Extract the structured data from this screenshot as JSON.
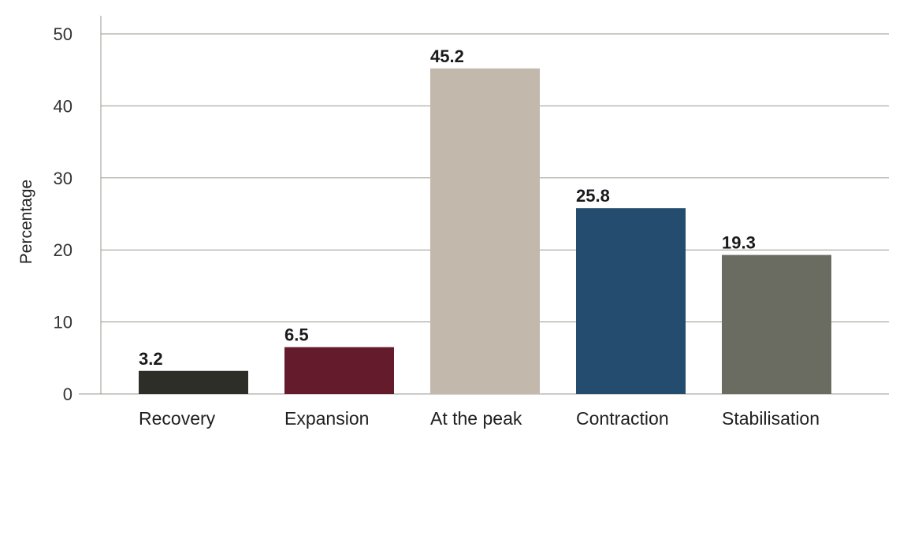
{
  "chart_data": {
    "type": "bar",
    "title": "",
    "xlabel": "",
    "ylabel": "Percentage",
    "ylim": [
      0,
      50
    ],
    "yticks": [
      0,
      10,
      20,
      30,
      40,
      50
    ],
    "grid": true,
    "categories": [
      "Recovery",
      "Expansion",
      "At the peak",
      "Contraction",
      "Stabilisation"
    ],
    "values": [
      3.2,
      6.5,
      45.2,
      25.8,
      19.3
    ],
    "data_labels": [
      "3.2",
      "6.5",
      "45.2",
      "25.8",
      "19.3"
    ],
    "colors": [
      "#2d2e28",
      "#641c2d",
      "#c2b8ab",
      "#244c6e",
      "#6a6c62"
    ]
  }
}
